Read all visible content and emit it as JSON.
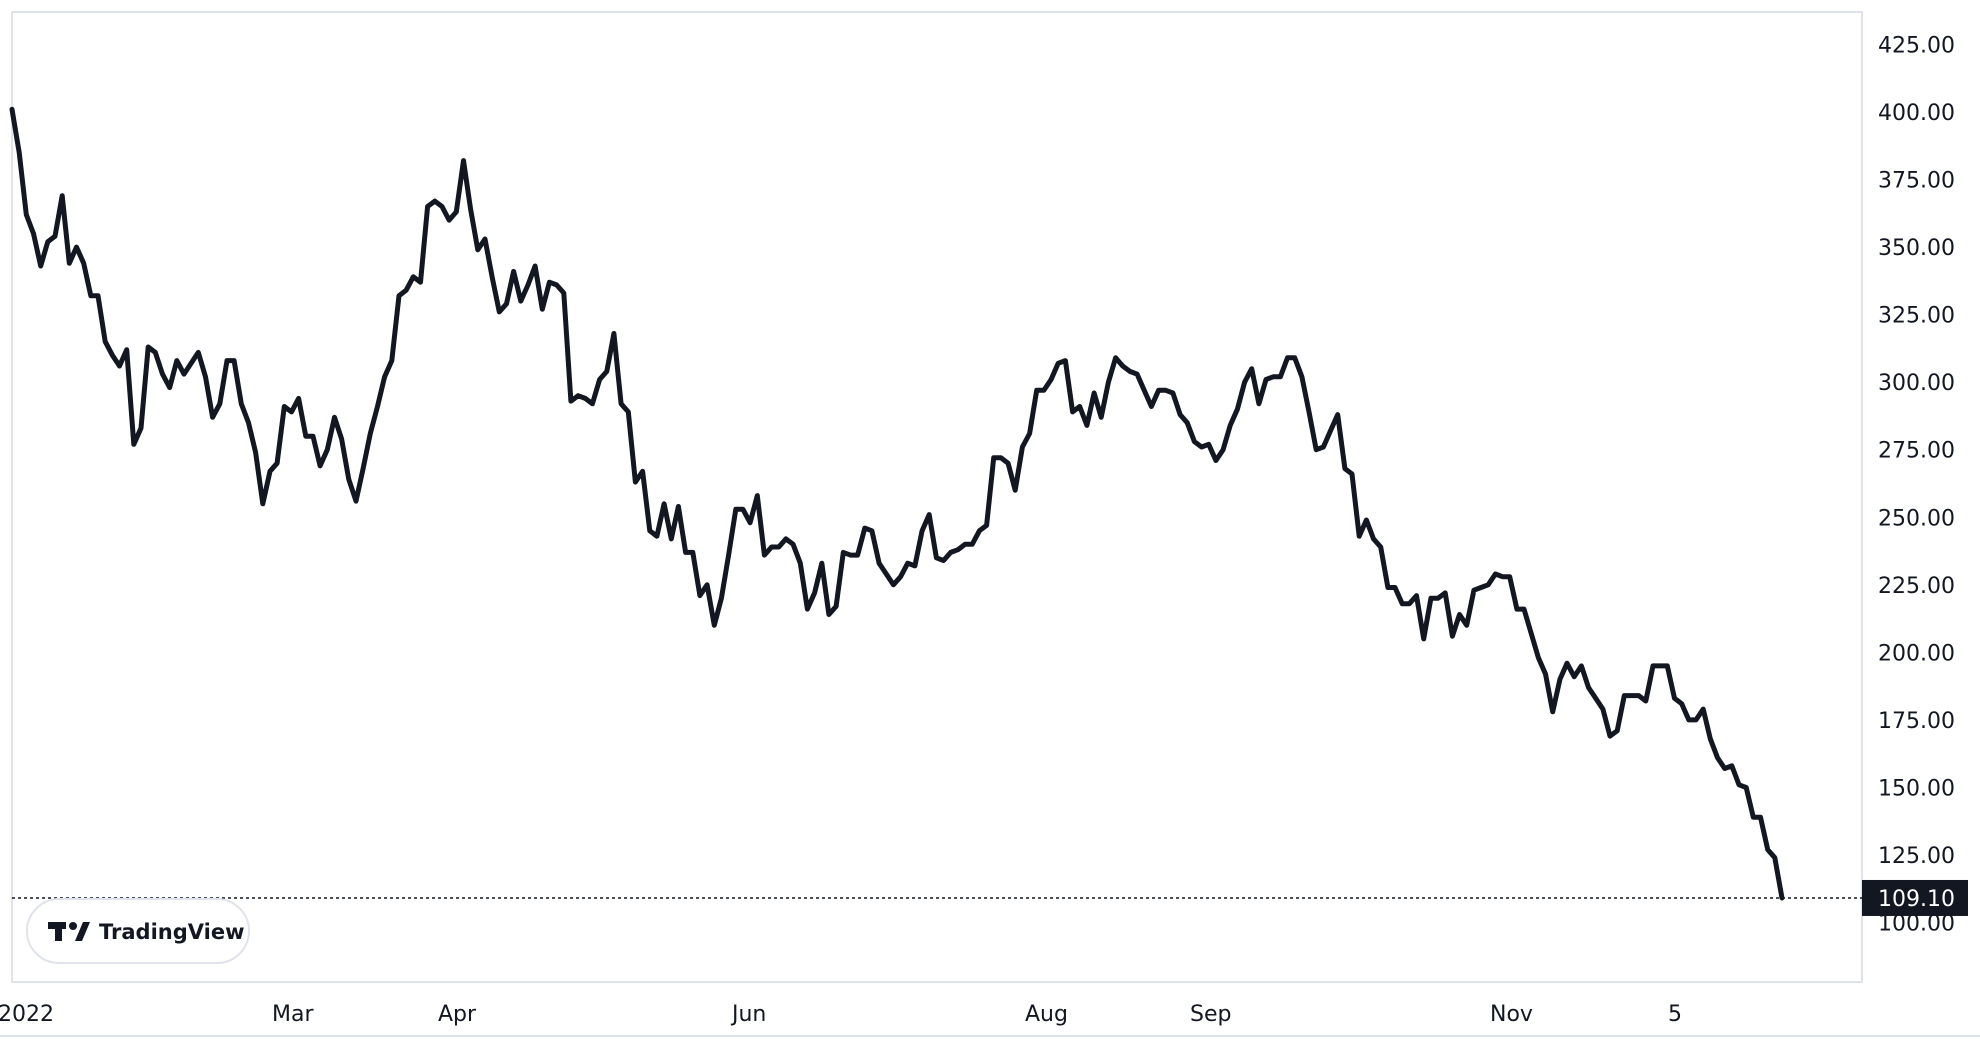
{
  "chart_data": {
    "type": "line",
    "title": "",
    "xlabel": "",
    "ylabel": "",
    "ylim": [
      78,
      437
    ],
    "y_ticks": [
      "425.00",
      "400.00",
      "375.00",
      "350.00",
      "325.00",
      "300.00",
      "275.00",
      "250.00",
      "225.00",
      "200.00",
      "175.00",
      "150.00",
      "125.00",
      "100.00"
    ],
    "x_ticks": [
      "2022",
      "Mar",
      "Apr",
      "Jun",
      "Aug",
      "Sep",
      "Nov",
      "5"
    ],
    "last_value_label": "109.10",
    "last_value": 109.1,
    "series": [
      {
        "values": [
          401,
          385,
          362,
          355,
          343,
          352,
          354,
          369,
          344,
          350,
          344,
          332,
          332,
          315,
          310,
          306,
          312,
          277,
          283,
          313,
          311,
          303,
          298,
          308,
          303,
          307,
          311,
          302,
          287,
          292,
          308,
          308,
          292,
          285,
          274,
          255,
          267,
          270,
          291,
          289,
          294,
          280,
          280,
          269,
          275,
          287,
          279,
          264,
          256,
          268,
          281,
          291,
          302,
          308,
          332,
          334,
          339,
          337,
          365,
          367,
          365,
          360,
          363,
          382,
          364,
          349,
          353,
          339,
          326,
          329,
          341,
          330,
          336,
          343,
          327,
          337,
          336,
          333,
          293,
          295,
          294,
          292,
          301,
          304,
          318,
          292,
          289,
          263,
          267,
          245,
          243,
          255,
          242,
          254,
          237,
          237,
          221,
          225,
          210,
          220,
          236,
          253,
          253,
          248,
          258,
          236,
          239,
          239,
          242,
          240,
          233,
          216,
          222,
          233,
          214,
          217,
          237,
          236,
          236,
          246,
          245,
          233,
          229,
          225,
          228,
          233,
          232,
          245,
          251,
          235,
          234,
          237,
          238,
          240,
          240,
          245,
          247,
          272,
          272,
          270,
          260,
          276,
          281,
          297,
          297,
          301,
          307,
          308,
          289,
          291,
          284,
          296,
          287,
          300,
          309,
          306,
          304,
          303,
          297,
          291,
          297,
          297,
          296,
          288,
          285,
          278,
          276,
          277,
          271,
          275,
          284,
          290,
          300,
          305,
          292,
          301,
          302,
          302,
          309,
          309,
          302,
          289,
          275,
          276,
          282,
          288,
          268,
          266,
          243,
          249,
          242,
          239,
          224,
          224,
          218,
          218,
          221,
          205,
          220,
          220,
          222,
          206,
          214,
          210,
          223,
          224,
          225,
          229,
          228,
          228,
          216,
          216,
          207,
          198,
          192,
          178,
          190,
          196,
          191,
          195,
          187,
          183,
          179,
          169,
          171,
          184,
          184,
          184,
          182,
          195,
          195,
          195,
          183,
          181,
          175,
          175,
          179,
          168,
          161,
          157,
          158,
          151,
          150,
          139,
          139,
          127,
          124,
          109.1
        ]
      }
    ],
    "grid": false,
    "legend": "none"
  },
  "branding": {
    "logo_text": "TradingView"
  },
  "colors": {
    "line": "#131722",
    "background": "#ffffff",
    "badge": "#131722",
    "border": "#e0e3eb"
  }
}
